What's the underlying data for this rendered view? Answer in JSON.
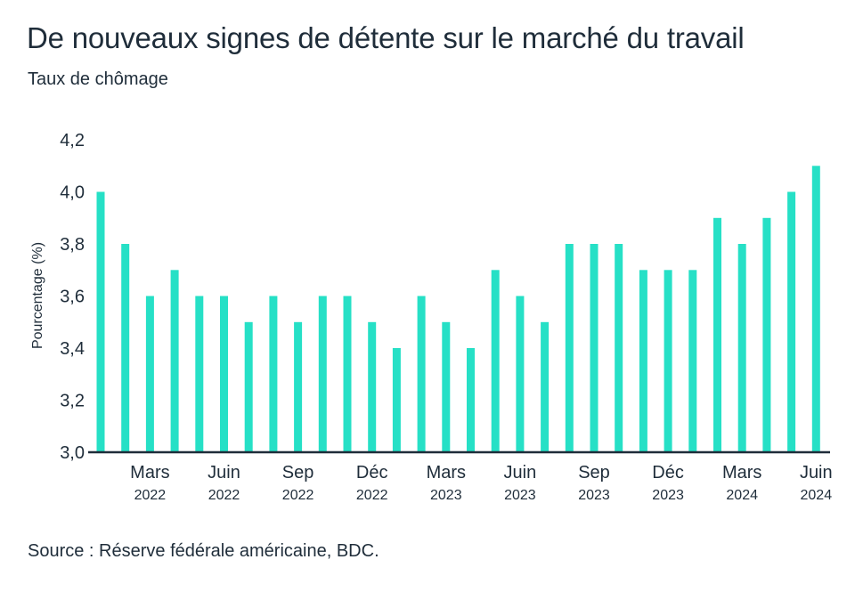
{
  "title": "De nouveaux signes de détente sur le marché du travail",
  "subtitle": "Taux de chômage",
  "source": "Source : Réserve fédérale américaine, BDC.",
  "colors": {
    "bar": "#26e0c6",
    "axis": "#1f2d3a",
    "text": "#1f2d3a"
  },
  "chart_data": {
    "type": "bar",
    "title": "De nouveaux signes de détente sur le marché du travail",
    "subtitle": "Taux de chômage",
    "xlabel": "",
    "ylabel": "Pourcentage (%)",
    "ylim": [
      3.0,
      4.2
    ],
    "yticks": [
      "3,0",
      "3,2",
      "3,4",
      "3,6",
      "3,8",
      "4,0",
      "4,2"
    ],
    "grid": false,
    "x_tick_labels": [
      {
        "month": "Mars",
        "year": "2022",
        "index": 2
      },
      {
        "month": "Juin",
        "year": "2022",
        "index": 5
      },
      {
        "month": "Sep",
        "year": "2022",
        "index": 8
      },
      {
        "month": "Déc",
        "year": "2022",
        "index": 11
      },
      {
        "month": "Mars",
        "year": "2023",
        "index": 14
      },
      {
        "month": "Juin",
        "year": "2023",
        "index": 17
      },
      {
        "month": "Sep",
        "year": "2023",
        "index": 20
      },
      {
        "month": "Déc",
        "year": "2023",
        "index": 23
      },
      {
        "month": "Mars",
        "year": "2024",
        "index": 26
      },
      {
        "month": "Juin",
        "year": "2024",
        "index": 29
      }
    ],
    "categories": [
      "2022-01",
      "2022-02",
      "2022-03",
      "2022-04",
      "2022-05",
      "2022-06",
      "2022-07",
      "2022-08",
      "2022-09",
      "2022-10",
      "2022-11",
      "2022-12",
      "2023-01",
      "2023-02",
      "2023-03",
      "2023-04",
      "2023-05",
      "2023-06",
      "2023-07",
      "2023-08",
      "2023-09",
      "2023-10",
      "2023-11",
      "2023-12",
      "2024-01",
      "2024-02",
      "2024-03",
      "2024-04",
      "2024-05",
      "2024-06"
    ],
    "values": [
      4.0,
      3.8,
      3.6,
      3.7,
      3.6,
      3.6,
      3.5,
      3.6,
      3.5,
      3.6,
      3.6,
      3.5,
      3.4,
      3.6,
      3.5,
      3.4,
      3.7,
      3.6,
      3.5,
      3.8,
      3.8,
      3.8,
      3.7,
      3.7,
      3.7,
      3.9,
      3.8,
      3.9,
      4.0,
      4.1
    ]
  }
}
